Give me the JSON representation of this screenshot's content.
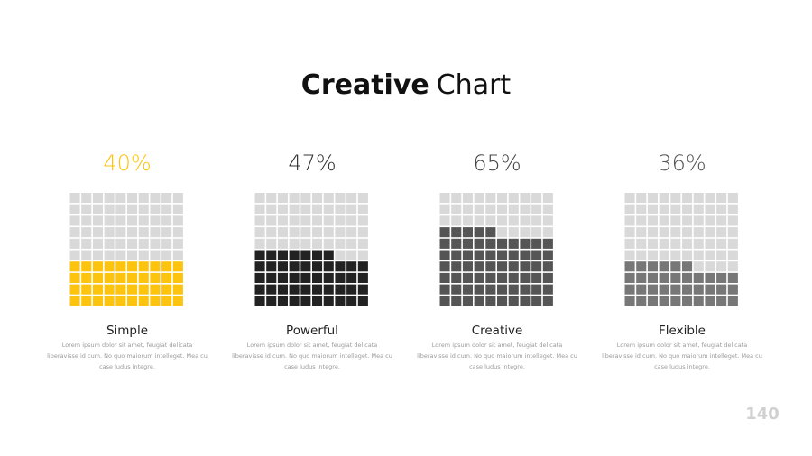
{
  "chart_data": {
    "type": "waffle",
    "title": {
      "bold": "Creative",
      "regular": "Chart"
    },
    "categories": [
      "Simple",
      "Powerful",
      "Creative",
      "Flexible"
    ],
    "values": [
      40,
      47,
      65,
      36
    ],
    "value_labels": [
      "40%",
      "47%",
      "65%",
      "36%"
    ],
    "colors": [
      "#fcc30f",
      "#222222",
      "#555555",
      "#777777"
    ],
    "value_label_colors": [
      "#fcc30f",
      "#333333",
      "#444444",
      "#555555"
    ],
    "empty_color": "#d9d9d9",
    "grid_size": 10,
    "descriptions": [
      "Lorem ipsum dolor sit amet, feugiat delicata liberavisse id cum. No quo maiorum intelleget. Mea cu case ludus integre.",
      "Lorem ipsum dolor sit amet, feugiat delicata liberavisse id cum. No quo maiorum intelleget. Mea cu case ludus integre.",
      "Lorem ipsum dolor sit amet, feugiat delicata liberavisse id cum. No quo maiorum intelleget. Mea cu case ludus integre.",
      "Lorem ipsum dolor sit amet, feugiat delicata liberavisse id cum. No quo maiorum intelleget. Mea cu case ludus integre."
    ]
  },
  "page_number": 140
}
